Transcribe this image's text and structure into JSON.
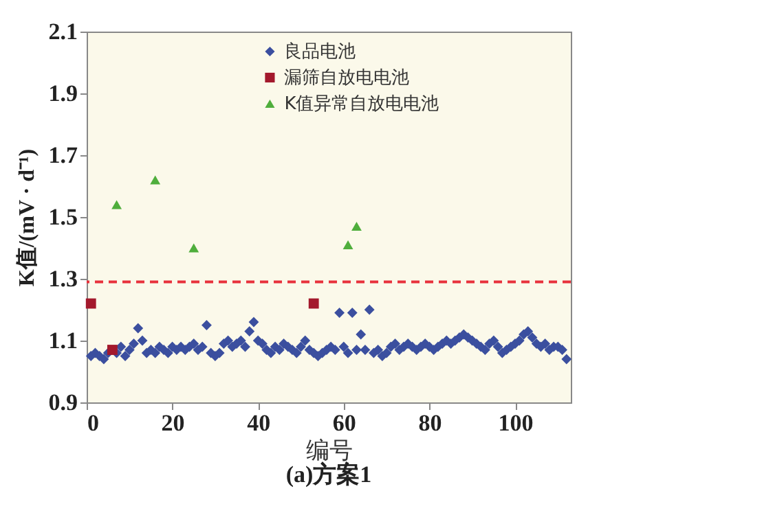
{
  "chart_data": {
    "type": "scatter",
    "title": "(a)方案1",
    "xlabel": "编号",
    "ylabel": "K值/(mV · d⁻¹)",
    "xlim": [
      0,
      113
    ],
    "xticks": [
      0,
      20,
      40,
      60,
      80,
      100
    ],
    "ylim": [
      0.9,
      2.1
    ],
    "yticks": [
      0.9,
      1.1,
      1.3,
      1.5,
      1.7,
      1.9,
      2.1
    ],
    "grid": false,
    "legend": "top",
    "series": [
      {
        "name": "良品电池",
        "color": "#3b4f9f",
        "marker": "diamond",
        "x": [
          1,
          2,
          3,
          4,
          5,
          7,
          8,
          9,
          10,
          11,
          12,
          13,
          14,
          15,
          16,
          17,
          18,
          19,
          20,
          21,
          22,
          23,
          24,
          25,
          26,
          27,
          28,
          29,
          30,
          31,
          32,
          33,
          34,
          35,
          36,
          37,
          38,
          39,
          40,
          41,
          42,
          43,
          44,
          45,
          46,
          47,
          48,
          49,
          50,
          51,
          52,
          53,
          54,
          55,
          56,
          57,
          58,
          59,
          60,
          61,
          62,
          63,
          64,
          65,
          66,
          67,
          68,
          69,
          70,
          71,
          72,
          73,
          74,
          75,
          76,
          77,
          78,
          79,
          80,
          81,
          82,
          83,
          84,
          85,
          86,
          87,
          88,
          89,
          90,
          91,
          92,
          93,
          94,
          95,
          96,
          97,
          98,
          99,
          100,
          101,
          102,
          103,
          104,
          105,
          106,
          107,
          108,
          109,
          110,
          111,
          112
        ],
        "values": [
          1.05,
          1.06,
          1.05,
          1.04,
          1.06,
          1.06,
          1.08,
          1.05,
          1.07,
          1.09,
          1.14,
          1.1,
          1.06,
          1.07,
          1.06,
          1.08,
          1.07,
          1.06,
          1.08,
          1.07,
          1.08,
          1.07,
          1.08,
          1.09,
          1.07,
          1.08,
          1.15,
          1.06,
          1.05,
          1.06,
          1.09,
          1.1,
          1.08,
          1.09,
          1.1,
          1.08,
          1.13,
          1.16,
          1.1,
          1.09,
          1.07,
          1.06,
          1.08,
          1.07,
          1.09,
          1.08,
          1.07,
          1.06,
          1.08,
          1.1,
          1.07,
          1.06,
          1.05,
          1.06,
          1.07,
          1.08,
          1.07,
          1.19,
          1.08,
          1.06,
          1.19,
          1.07,
          1.12,
          1.07,
          1.2,
          1.06,
          1.07,
          1.05,
          1.06,
          1.08,
          1.09,
          1.07,
          1.08,
          1.09,
          1.08,
          1.07,
          1.08,
          1.09,
          1.08,
          1.07,
          1.08,
          1.09,
          1.1,
          1.09,
          1.1,
          1.11,
          1.12,
          1.11,
          1.1,
          1.09,
          1.08,
          1.07,
          1.09,
          1.1,
          1.08,
          1.06,
          1.07,
          1.08,
          1.09,
          1.1,
          1.12,
          1.13,
          1.11,
          1.09,
          1.08,
          1.09,
          1.07,
          1.08,
          1.08,
          1.07,
          1.04
        ]
      },
      {
        "name": "漏筛自放电电池",
        "color": "#a3192c",
        "marker": "square",
        "x": [
          1,
          6,
          53
        ],
        "values": [
          1.22,
          1.07,
          1.22
        ]
      },
      {
        "name": "K值异常自放电电池",
        "color": "#4fae3c",
        "marker": "triangle",
        "x": [
          7,
          16,
          25,
          61,
          63
        ],
        "values": [
          1.54,
          1.62,
          1.4,
          1.41,
          1.47
        ]
      }
    ],
    "ref_lines": [
      {
        "axis": "y",
        "value": 1.29,
        "color": "#e8323c",
        "line_style": "dashed"
      }
    ]
  }
}
